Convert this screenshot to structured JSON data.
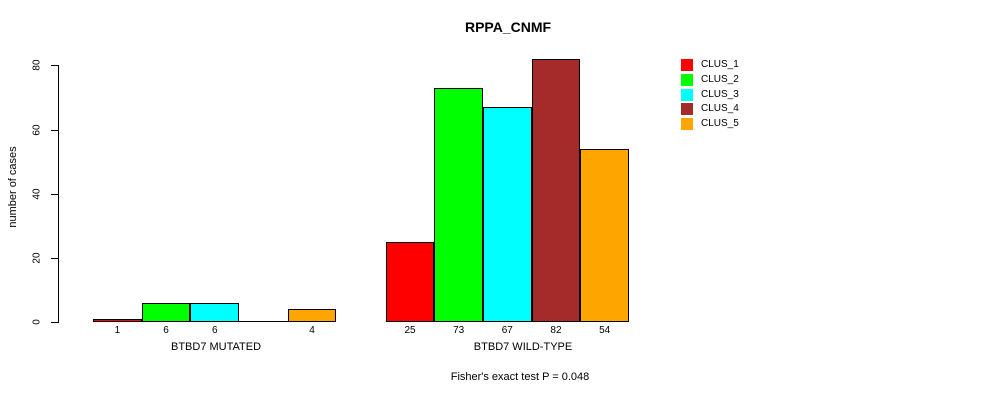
{
  "chart_data": {
    "type": "bar",
    "title": "RPPA_CNMF",
    "ylabel": "number of cases",
    "xlabel": "",
    "ylim": [
      0,
      80
    ],
    "yticks": [
      0,
      20,
      40,
      60,
      80
    ],
    "grid": false,
    "legend_position": "right-outside",
    "categories": [
      "BTBD7 MUTATED",
      "BTBD7 WILD-TYPE"
    ],
    "series": [
      {
        "name": "CLUS_1",
        "color": "#FF0000",
        "values": [
          1,
          25
        ]
      },
      {
        "name": "CLUS_2",
        "color": "#00FF00",
        "values": [
          6,
          73
        ]
      },
      {
        "name": "CLUS_3",
        "color": "#00FFFF",
        "values": [
          6,
          67
        ]
      },
      {
        "name": "CLUS_4",
        "color": "#A52A2A",
        "values": [
          0,
          82
        ]
      },
      {
        "name": "CLUS_5",
        "color": "#FFA500",
        "values": [
          4,
          54
        ]
      }
    ],
    "bar_value_labels": [
      [
        "1",
        "6",
        "6",
        "",
        "4"
      ],
      [
        "25",
        "73",
        "67",
        "82",
        "54"
      ]
    ],
    "annotation": "Fisher's exact test P = 0.048",
    "colors": {
      "axis": "#000000",
      "bar_border": "#000000",
      "background": "#FFFFFF",
      "text": "#000000"
    }
  }
}
